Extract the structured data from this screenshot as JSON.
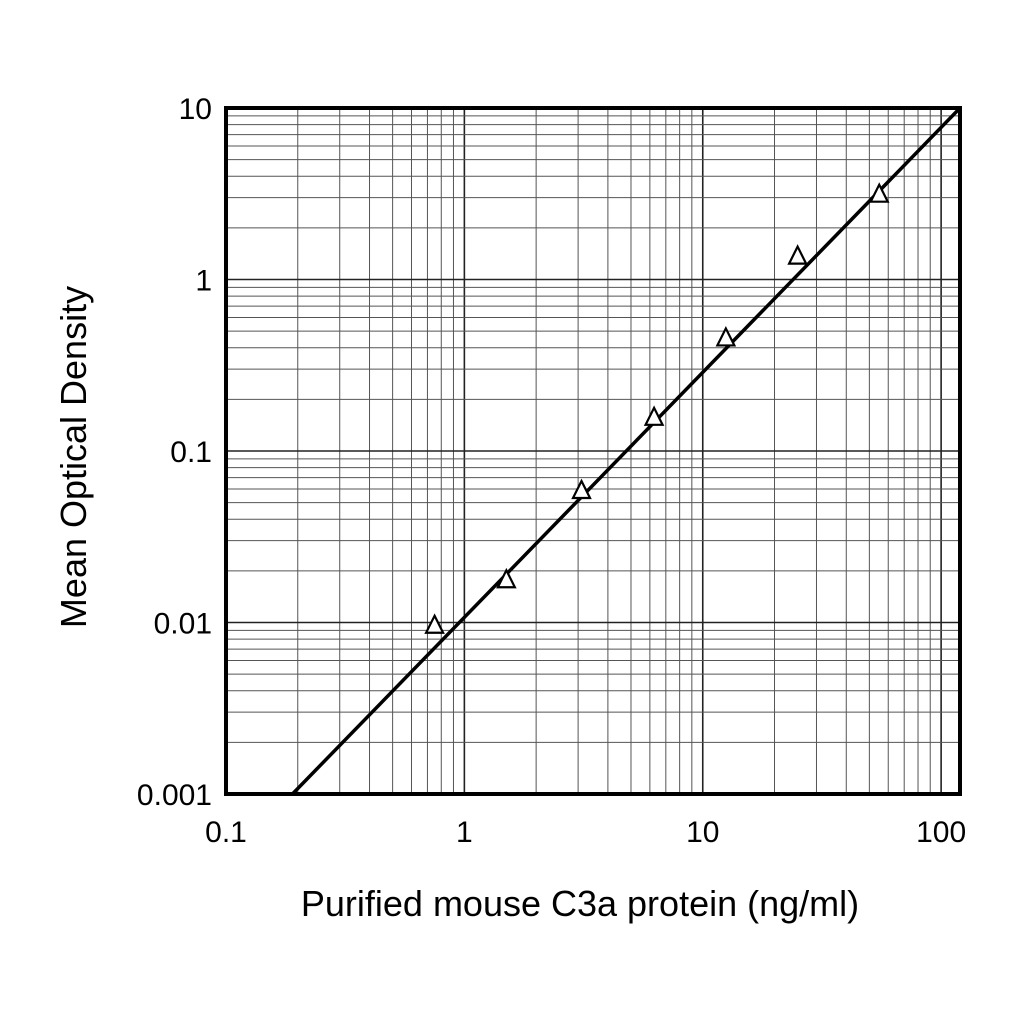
{
  "chart_data": {
    "type": "scatter",
    "xlabel": "Purified mouse C3a protein (ng/ml)",
    "ylabel": "Mean Optical Density",
    "xscale": "log",
    "yscale": "log",
    "xlim": [
      0.1,
      120
    ],
    "ylim": [
      0.001,
      10
    ],
    "grid": true,
    "x_ticks": [
      {
        "value": 0.1,
        "label": "0.1"
      },
      {
        "value": 1,
        "label": "1"
      },
      {
        "value": 10,
        "label": "10"
      },
      {
        "value": 100,
        "label": "100"
      }
    ],
    "y_ticks": [
      {
        "value": 0.001,
        "label": "0.001"
      },
      {
        "value": 0.01,
        "label": "0.01"
      },
      {
        "value": 0.1,
        "label": "0.1"
      },
      {
        "value": 1,
        "label": "1"
      },
      {
        "value": 10,
        "label": "10"
      }
    ],
    "series": [
      {
        "marker": "open-triangle",
        "x": [
          0.75,
          1.5,
          3.1,
          6.25,
          12.5,
          25,
          55
        ],
        "y": [
          0.0095,
          0.0175,
          0.058,
          0.155,
          0.45,
          1.35,
          3.1
        ]
      }
    ],
    "fit_line": {
      "style": "solid",
      "x": [
        0.19,
        120
      ],
      "y": [
        0.001,
        10
      ]
    },
    "colors": {
      "axis": "#000000",
      "grid": "#555555",
      "marker": "#000000",
      "background": "#ffffff"
    }
  }
}
